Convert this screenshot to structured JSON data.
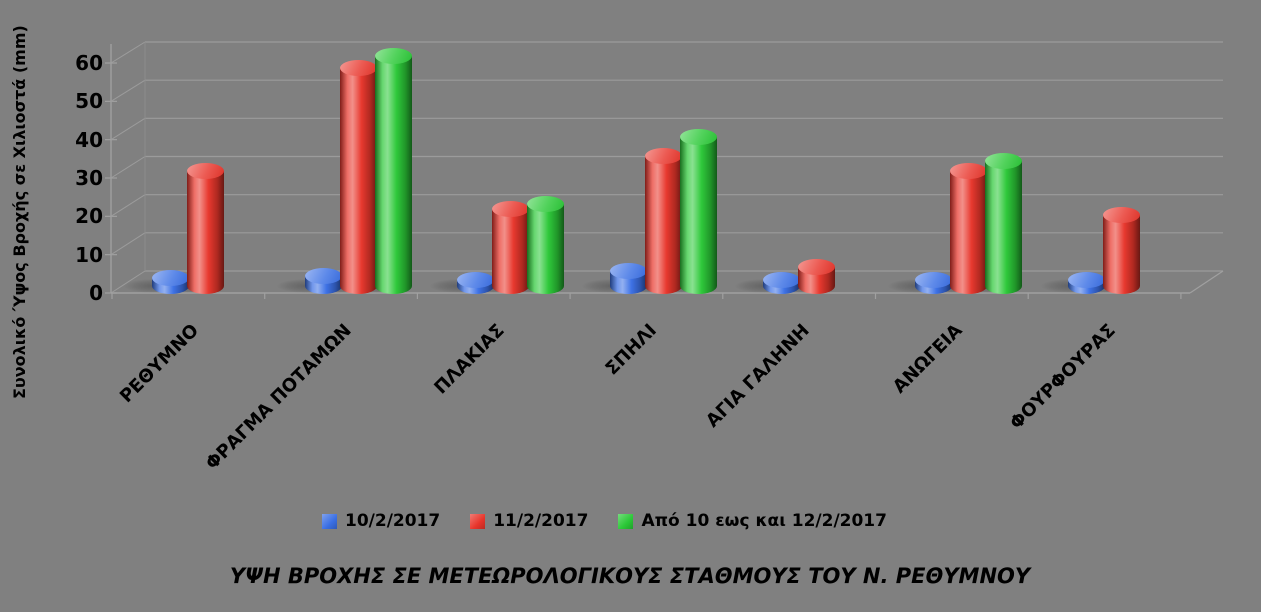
{
  "chart_data": {
    "type": "bar",
    "subtype": "3d-cylinder",
    "title": "ΥΨΗ ΒΡΟΧΗΣ ΣΕ ΜΕΤΕΩΡΟΛΟΓΙΚΟΥΣ ΣΤΑΘΜΟΥΣ ΤΟΥ Ν. ΡΕΘΥΜΝΟΥ",
    "ylabel": "Συνολικό Ύψος Βροχής σε Χιλιοστά (mm)",
    "xlabel": "",
    "ylim": [
      0,
      60
    ],
    "yticks": [
      0,
      10,
      20,
      30,
      40,
      50,
      60
    ],
    "grid": true,
    "legend_position": "bottom",
    "categories": [
      "ΡΕΘΥΜΝΟ",
      "ΦΡΑΓΜΑ ΠΟΤΑΜΩΝ",
      "ΠΛΑΚΙΑΣ",
      "ΣΠΗΛΙ",
      "ΑΓΙΑ ΓΑΛΗΝΗ",
      "ΑΝΩΓΕΙΑ",
      "ΦΟΥΡΦΟΥΡΑΣ"
    ],
    "series": [
      {
        "name": "10/2/2017",
        "color": "#3A6FE4",
        "values": [
          2,
          2.5,
          1.5,
          4,
          1.5,
          1.5,
          1.5
        ]
      },
      {
        "name": "11/2/2017",
        "color": "#E8352B",
        "values": [
          30,
          57,
          20,
          34,
          5,
          30,
          18.5
        ]
      },
      {
        "name": "Από 10 εως και 12/2/2017",
        "color": "#2BC837",
        "values": [
          null,
          60,
          21.5,
          39,
          null,
          32.5,
          null
        ]
      }
    ]
  },
  "colors": {
    "background": "#808080",
    "gridline": "#9B9B9B",
    "axis": "#A0A0A0",
    "text": "#000000",
    "series_blue": "#3A6FE4",
    "series_red": "#E8352B",
    "series_green": "#2BC837"
  }
}
